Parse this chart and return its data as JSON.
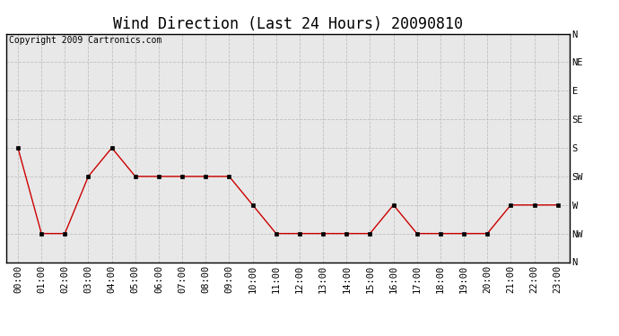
{
  "title": "Wind Direction (Last 24 Hours) 20090810",
  "copyright_text": "Copyright 2009 Cartronics.com",
  "hours": [
    0,
    1,
    2,
    3,
    4,
    5,
    6,
    7,
    8,
    9,
    10,
    11,
    12,
    13,
    14,
    15,
    16,
    17,
    18,
    19,
    20,
    21,
    22,
    23
  ],
  "x_labels": [
    "00:00",
    "01:00",
    "02:00",
    "03:00",
    "04:00",
    "05:00",
    "06:00",
    "07:00",
    "08:00",
    "09:00",
    "10:00",
    "11:00",
    "12:00",
    "13:00",
    "14:00",
    "15:00",
    "16:00",
    "17:00",
    "18:00",
    "19:00",
    "20:00",
    "21:00",
    "22:00",
    "23:00"
  ],
  "wind_values": [
    180,
    315,
    315,
    225,
    180,
    225,
    225,
    225,
    225,
    225,
    270,
    315,
    315,
    315,
    315,
    315,
    270,
    315,
    315,
    315,
    315,
    270,
    270,
    270
  ],
  "y_ticks": [
    360,
    315,
    270,
    225,
    180,
    135,
    90,
    45,
    0
  ],
  "y_tick_labels": [
    "N",
    "NW",
    "W",
    "SW",
    "S",
    "SE",
    "E",
    "NE",
    "N"
  ],
  "line_color": "#cc0000",
  "marker": "s",
  "marker_size": 3,
  "bg_color": "#ffffff",
  "plot_bg_color": "#e8e8e8",
  "grid_color": "#c0c0c0",
  "title_fontsize": 12,
  "copyright_fontsize": 7,
  "tick_fontsize": 7.5,
  "ylim": [
    0,
    360
  ],
  "figwidth": 6.9,
  "figheight": 3.75
}
